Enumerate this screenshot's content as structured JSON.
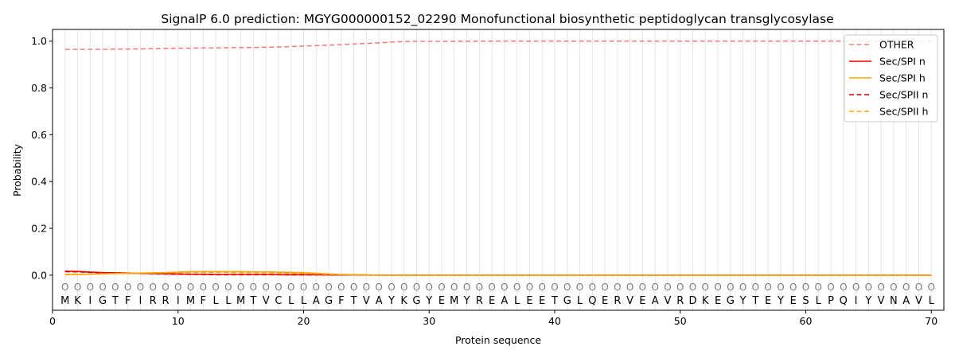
{
  "chart_data": {
    "type": "line",
    "title": "SignalP 6.0 prediction: MGYG000000152_02290 Monofunctional biosynthetic peptidoglycan transglycosylase",
    "xlabel": "Protein sequence",
    "ylabel": "Probability",
    "xlim": [
      0,
      71
    ],
    "ylim": [
      -0.15,
      1.05
    ],
    "xticks": [
      "0",
      "10",
      "20",
      "30",
      "40",
      "50",
      "60",
      "70"
    ],
    "yticks": [
      "0.0",
      "0.2",
      "0.4",
      "0.6",
      "0.8",
      "1.0"
    ],
    "grid": "vertical lines at each residue",
    "legend_position": "top-right",
    "sequence": [
      "M",
      "K",
      "I",
      "G",
      "T",
      "F",
      "I",
      "R",
      "R",
      "I",
      "M",
      "F",
      "L",
      "L",
      "M",
      "T",
      "V",
      "C",
      "L",
      "L",
      "A",
      "G",
      "F",
      "T",
      "V",
      "A",
      "Y",
      "K",
      "G",
      "Y",
      "E",
      "M",
      "Y",
      "R",
      "E",
      "A",
      "L",
      "E",
      "E",
      "T",
      "G",
      "L",
      "Q",
      "E",
      "R",
      "V",
      "E",
      "A",
      "V",
      "R",
      "D",
      "K",
      "E",
      "G",
      "Y",
      "T",
      "E",
      "Y",
      "E",
      "S",
      "L",
      "P",
      "Q",
      "I",
      "Y",
      "V",
      "N",
      "A",
      "V",
      "L"
    ],
    "region_labels": [
      "O",
      "O",
      "O",
      "O",
      "O",
      "O",
      "O",
      "O",
      "O",
      "O",
      "O",
      "O",
      "O",
      "O",
      "O",
      "O",
      "O",
      "O",
      "O",
      "O",
      "O",
      "O",
      "O",
      "O",
      "O",
      "O",
      "O",
      "O",
      "O",
      "O",
      "O",
      "O",
      "O",
      "O",
      "O",
      "O",
      "O",
      "O",
      "O",
      "O",
      "O",
      "O",
      "O",
      "O",
      "O",
      "O",
      "O",
      "O",
      "O",
      "O",
      "O",
      "O",
      "O",
      "O",
      "O",
      "O",
      "O",
      "O",
      "O",
      "O",
      "O",
      "O",
      "O",
      "O",
      "O",
      "O",
      "O",
      "O",
      "O",
      "O"
    ],
    "series": [
      {
        "name": "OTHER",
        "color": "#f08080",
        "style": "dashed",
        "values": [
          0.965,
          0.965,
          0.965,
          0.965,
          0.966,
          0.966,
          0.967,
          0.968,
          0.969,
          0.97,
          0.97,
          0.971,
          0.971,
          0.972,
          0.973,
          0.973,
          0.974,
          0.975,
          0.977,
          0.979,
          0.981,
          0.983,
          0.985,
          0.988,
          0.99,
          0.993,
          0.996,
          0.998,
          0.999,
          0.999,
          0.999,
          0.9995,
          0.9995,
          1.0,
          1.0,
          1.0,
          1.0,
          1.0,
          1.0,
          1.0,
          1.0,
          1.0,
          1.0,
          1.0,
          1.0,
          1.0,
          1.0,
          1.0,
          1.0,
          1.0,
          1.0,
          1.0,
          1.0,
          1.0,
          1.0,
          1.0,
          1.0,
          1.0,
          1.0,
          1.0,
          1.0,
          1.0,
          1.0,
          1.0,
          1.0,
          1.0,
          1.0,
          1.0,
          1.0,
          1.0
        ]
      },
      {
        "name": "Sec/SPI n",
        "color": "#ff0000",
        "style": "solid",
        "values": [
          0.017,
          0.016,
          0.013,
          0.011,
          0.01,
          0.009,
          0.008,
          0.007,
          0.006,
          0.005,
          0.004,
          0.004,
          0.003,
          0.003,
          0.003,
          0.003,
          0.003,
          0.002,
          0.002,
          0.002,
          0.002,
          0.001,
          0.001,
          0.001,
          0.0005,
          0,
          0,
          0,
          0,
          0,
          0,
          0,
          0,
          0,
          0,
          0,
          0,
          0,
          0,
          0,
          0,
          0,
          0,
          0,
          0,
          0,
          0,
          0,
          0,
          0,
          0,
          0,
          0,
          0,
          0,
          0,
          0,
          0,
          0,
          0,
          0,
          0,
          0,
          0,
          0,
          0,
          0,
          0,
          0,
          0
        ]
      },
      {
        "name": "Sec/SPI h",
        "color": "#ffa500",
        "style": "solid",
        "values": [
          0.002,
          0.003,
          0.004,
          0.006,
          0.007,
          0.008,
          0.009,
          0.01,
          0.011,
          0.013,
          0.015,
          0.015,
          0.015,
          0.015,
          0.015,
          0.014,
          0.014,
          0.013,
          0.012,
          0.011,
          0.008,
          0.005,
          0.003,
          0.002,
          0.001,
          0,
          0,
          0,
          0,
          0,
          0,
          0,
          0,
          0,
          0,
          0,
          0,
          0,
          0,
          0,
          0,
          0,
          0,
          0,
          0,
          0,
          0,
          0,
          0,
          0,
          0,
          0,
          0,
          0,
          0,
          0,
          0,
          0,
          0,
          0,
          0,
          0,
          0,
          0,
          0,
          0,
          0,
          0,
          0,
          0
        ]
      },
      {
        "name": "Sec/SPII n",
        "color": "#d40000",
        "style": "dashed",
        "values": [
          0.015,
          0.014,
          0.012,
          0.01,
          0.009,
          0.008,
          0.007,
          0.006,
          0.005,
          0.004,
          0.003,
          0.003,
          0.002,
          0.002,
          0.002,
          0.002,
          0.002,
          0.002,
          0.001,
          0.001,
          0.001,
          0.001,
          0.0005,
          0.0005,
          0,
          0,
          0,
          0,
          0,
          0,
          0,
          0,
          0,
          0,
          0,
          0,
          0,
          0,
          0,
          0,
          0,
          0,
          0,
          0,
          0,
          0,
          0,
          0,
          0,
          0,
          0,
          0,
          0,
          0,
          0,
          0,
          0,
          0,
          0,
          0,
          0,
          0,
          0,
          0,
          0,
          0,
          0,
          0,
          0,
          0
        ]
      },
      {
        "name": "Sec/SPII h",
        "color": "#ffa500",
        "style": "dashed",
        "values": [
          0.003,
          0.004,
          0.005,
          0.006,
          0.007,
          0.008,
          0.008,
          0.009,
          0.01,
          0.011,
          0.012,
          0.012,
          0.012,
          0.012,
          0.011,
          0.011,
          0.01,
          0.009,
          0.008,
          0.007,
          0.005,
          0.003,
          0.002,
          0.001,
          0.0005,
          0,
          0,
          0,
          0,
          0,
          0,
          0,
          0,
          0,
          0,
          0,
          0,
          0,
          0,
          0,
          0,
          0,
          0,
          0,
          0,
          0,
          0,
          0,
          0,
          0,
          0,
          0,
          0,
          0,
          0,
          0,
          0,
          0,
          0,
          0,
          0,
          0,
          0,
          0,
          0,
          0,
          0,
          0,
          0,
          0
        ]
      }
    ]
  }
}
